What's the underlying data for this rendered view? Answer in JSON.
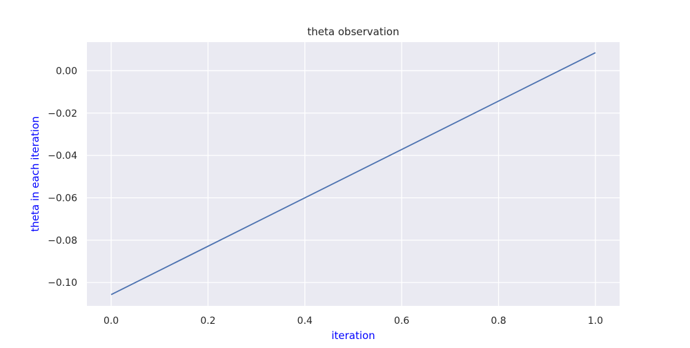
{
  "chart_data": {
    "type": "line",
    "title": "theta observation",
    "xlabel": "iteration",
    "ylabel": "theta in each iteration",
    "xlim": [
      -0.05,
      1.05
    ],
    "ylim": [
      -0.111,
      0.0135
    ],
    "xticks": [
      0.0,
      0.2,
      0.4,
      0.6,
      0.8,
      1.0
    ],
    "yticks": [
      0.0,
      -0.02,
      -0.04,
      -0.06,
      -0.08,
      -0.1
    ],
    "xtick_labels": [
      "0.0",
      "0.2",
      "0.4",
      "0.6",
      "0.8",
      "1.0"
    ],
    "ytick_labels": [
      "0.00",
      "−0.02",
      "−0.04",
      "−0.06",
      "−0.08",
      "−0.10"
    ],
    "series": [
      {
        "x": [
          0.0,
          1.0
        ],
        "y": [
          -0.1057,
          0.0085
        ]
      }
    ],
    "grid": true,
    "colors": {
      "background": "#eaeaf2",
      "grid": "#ffffff",
      "line": "#4c72b0",
      "axis_label": "#0000ff",
      "text": "#262626"
    }
  }
}
